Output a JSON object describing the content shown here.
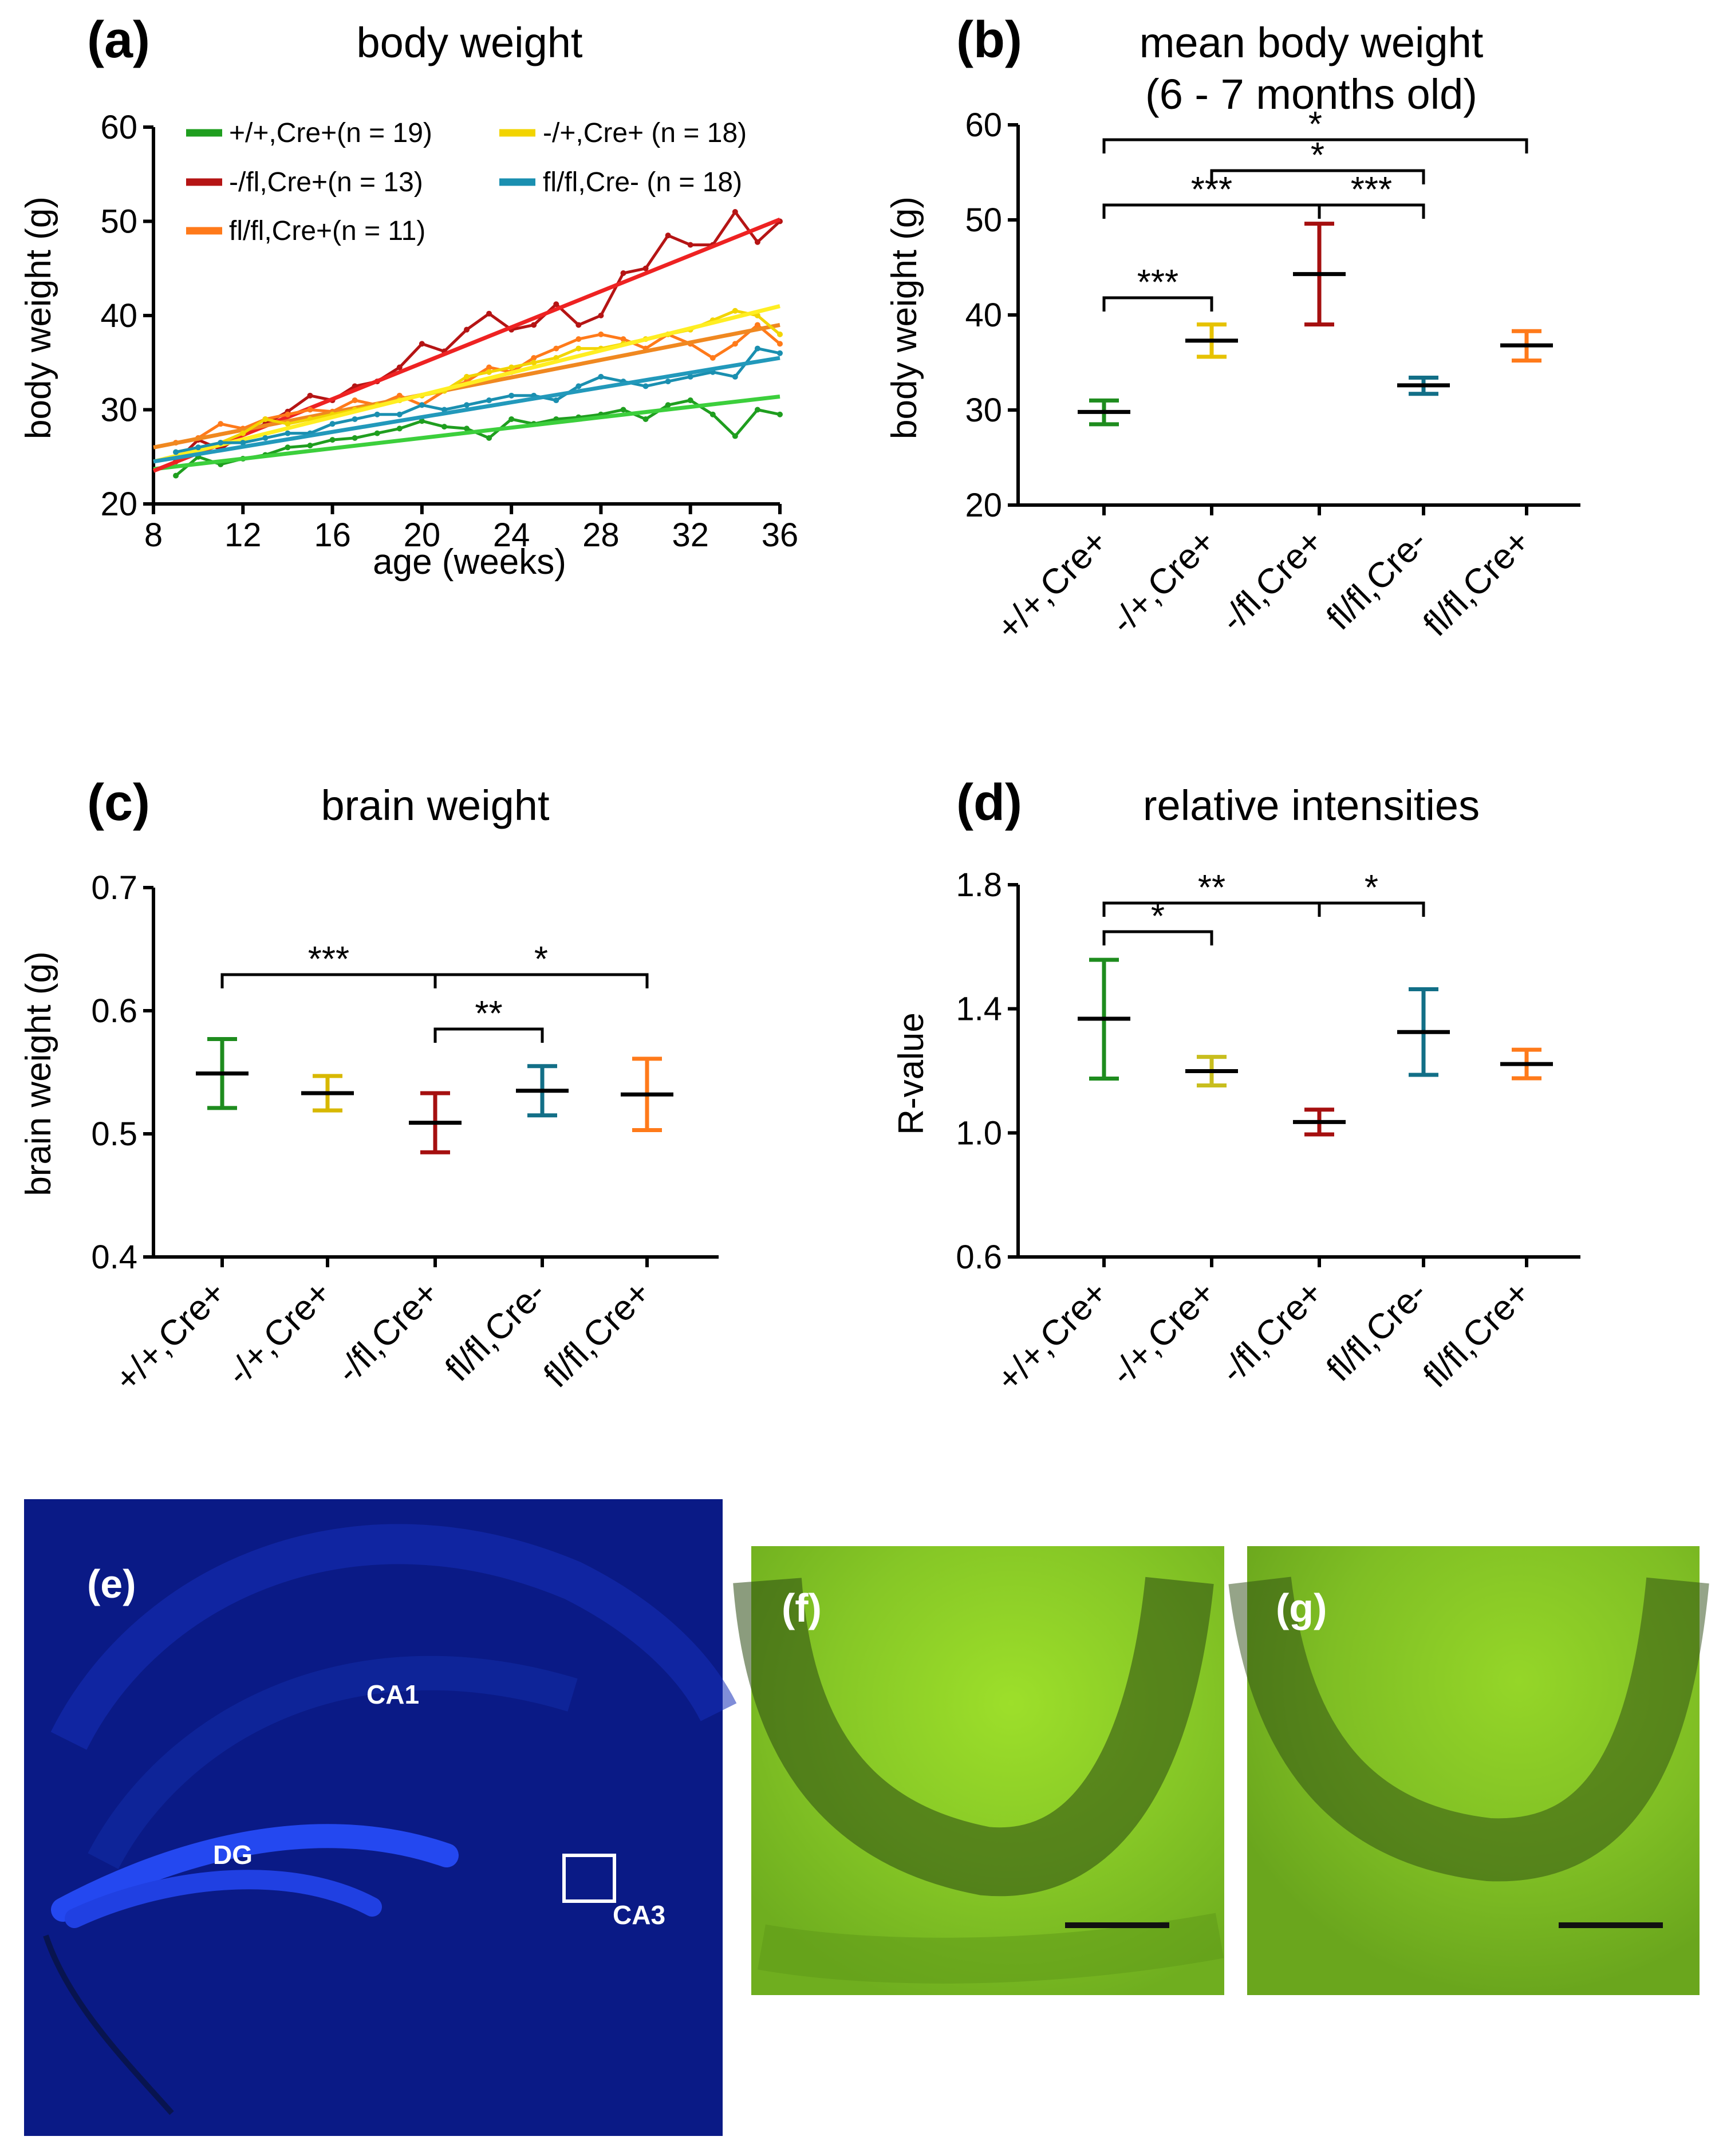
{
  "chart_data": [
    {
      "panel": "(a)",
      "type": "line",
      "title": "body weight",
      "xlabel": "age (weeks)",
      "ylabel": "body weight (g)",
      "xlim": [
        8,
        36
      ],
      "ylim": [
        20,
        60
      ],
      "xticks": [
        8,
        12,
        16,
        20,
        24,
        28,
        32,
        36
      ],
      "yticks": [
        20,
        30,
        40,
        50,
        60
      ],
      "legend": "top-left",
      "series": [
        {
          "name": "+/+,Cre+(n = 19)",
          "color": "#1f9e1f",
          "fit_color": "#3ccf3c",
          "x": [
            9,
            10,
            11,
            12,
            13,
            14,
            15,
            16,
            17,
            18,
            19,
            20,
            21,
            22,
            23,
            24,
            25,
            26,
            27,
            28,
            29,
            30,
            31,
            32,
            33,
            34,
            35,
            36
          ],
          "y": [
            23.0,
            25.0,
            24.2,
            24.8,
            25.2,
            26.0,
            26.2,
            26.8,
            27.0,
            27.5,
            28.0,
            28.8,
            28.2,
            28.0,
            27.0,
            29.0,
            28.5,
            29.0,
            29.2,
            29.5,
            30.0,
            29.0,
            30.5,
            31.0,
            29.5,
            27.2,
            30.0,
            29.5
          ],
          "fit": [
            [
              8,
              23.7
            ],
            [
              36,
              31.4
            ]
          ]
        },
        {
          "name": "-/fl,Cre+(n = 13)",
          "color": "#b51414",
          "fit_color": "#ee2222",
          "x": [
            9,
            10,
            11,
            12,
            13,
            14,
            15,
            16,
            17,
            18,
            19,
            20,
            21,
            22,
            23,
            24,
            25,
            26,
            27,
            28,
            29,
            30,
            31,
            32,
            33,
            34,
            35,
            36
          ],
          "y": [
            24.5,
            26.8,
            25.8,
            27.5,
            28.5,
            29.8,
            31.5,
            31.0,
            32.5,
            33.0,
            34.5,
            37.0,
            36.2,
            38.5,
            40.2,
            38.5,
            39.0,
            41.2,
            39.0,
            40.0,
            44.5,
            45.0,
            48.5,
            47.5,
            47.5,
            51.0,
            47.8,
            50.0
          ],
          "fit": [
            [
              8,
              23.5
            ],
            [
              36,
              50.2
            ]
          ]
        },
        {
          "name": "fl/fl,Cre+(n = 11)",
          "color": "#ff7a1a",
          "fit_color": "#f08820",
          "x": [
            9,
            10,
            11,
            12,
            13,
            14,
            15,
            16,
            17,
            18,
            19,
            20,
            21,
            22,
            23,
            24,
            25,
            26,
            27,
            28,
            29,
            30,
            31,
            32,
            33,
            34,
            35,
            36
          ],
          "y": [
            26.5,
            27.0,
            28.5,
            28.0,
            29.0,
            29.5,
            30.0,
            29.8,
            31.0,
            30.5,
            31.5,
            30.5,
            32.0,
            33.0,
            34.5,
            34.0,
            35.5,
            36.5,
            37.5,
            38.0,
            37.5,
            36.5,
            38.0,
            37.0,
            35.5,
            37.0,
            39.0,
            37.0
          ],
          "fit": [
            [
              8,
              26.0
            ],
            [
              36,
              39.0
            ]
          ]
        },
        {
          "name": "-/+,Cre+ (n = 18)",
          "color": "#f2d400",
          "fit_color": "#ffee22",
          "x": [
            9,
            10,
            11,
            12,
            13,
            14,
            15,
            16,
            17,
            18,
            19,
            20,
            21,
            22,
            23,
            24,
            25,
            26,
            27,
            28,
            29,
            30,
            31,
            32,
            33,
            34,
            35,
            36
          ],
          "y": [
            25.5,
            26.0,
            26.5,
            27.5,
            29.0,
            28.5,
            29.0,
            29.5,
            30.0,
            30.5,
            31.0,
            31.5,
            32.0,
            33.5,
            34.0,
            34.5,
            35.0,
            35.5,
            36.5,
            36.5,
            37.0,
            37.5,
            38.0,
            38.5,
            39.5,
            40.5,
            40.0,
            38.0
          ],
          "fit": [
            [
              8,
              24.5
            ],
            [
              36,
              41.0
            ]
          ]
        },
        {
          "name": "fl/fl,Cre- (n = 18)",
          "color": "#1a8fb0",
          "fit_color": "#2299bb",
          "x": [
            9,
            10,
            11,
            12,
            13,
            14,
            15,
            16,
            17,
            18,
            19,
            20,
            21,
            22,
            23,
            24,
            25,
            26,
            27,
            28,
            29,
            30,
            31,
            32,
            33,
            34,
            35,
            36
          ],
          "y": [
            25.5,
            26.0,
            26.5,
            26.5,
            27.0,
            27.5,
            27.5,
            28.5,
            29.0,
            29.5,
            29.5,
            30.5,
            30.0,
            30.5,
            31.0,
            31.5,
            31.5,
            31.0,
            32.5,
            33.5,
            33.0,
            32.5,
            33.0,
            33.5,
            34.0,
            33.5,
            36.5,
            36.0
          ],
          "fit": [
            [
              8,
              24.5
            ],
            [
              36,
              35.5
            ]
          ]
        }
      ]
    },
    {
      "panel": "(b)",
      "type": "errorbar",
      "title": "mean body weight",
      "subtitle": "(6 - 7 months old)",
      "ylabel": "body weight (g)",
      "ylim": [
        20,
        60
      ],
      "yticks": [
        20,
        30,
        40,
        50,
        60
      ],
      "categories": [
        "+/+,Cre+",
        "-/+,Cre+",
        "-/fl,Cre+",
        "fl/fl,Cre-",
        "fl/fl,Cre+"
      ],
      "colors": [
        "#1e8c1e",
        "#e6c200",
        "#a50f0f",
        "#126f87",
        "#ff7a1a"
      ],
      "mean": [
        29.8,
        37.3,
        44.3,
        32.6,
        36.8
      ],
      "low": [
        28.5,
        35.6,
        39.0,
        31.7,
        35.2
      ],
      "high": [
        31.0,
        39.0,
        49.6,
        33.4,
        38.3
      ],
      "significance": [
        {
          "from": 0,
          "to": 4,
          "label": "*"
        },
        {
          "from": 1,
          "to": 3,
          "label": "*"
        },
        {
          "from": 0,
          "to": 3,
          "label": "***",
          "split_at": 2,
          "label2": "***"
        },
        {
          "from": 0,
          "to": 1,
          "label": "***"
        }
      ]
    },
    {
      "panel": "(c)",
      "type": "errorbar",
      "title": "brain weight",
      "ylabel": "brain weight (g)",
      "ylim": [
        0.4,
        0.7
      ],
      "yticks": [
        "0.4",
        "0.5",
        "0.6",
        "0.7"
      ],
      "categories": [
        "+/+,Cre+",
        "-/+,Cre+",
        "-/fl,Cre+",
        "fl/fl,Cre-",
        "fl/fl,Cre+"
      ],
      "colors": [
        "#1e8c1e",
        "#d8b800",
        "#a50f0f",
        "#126f87",
        "#ff7a1a"
      ],
      "mean": [
        0.549,
        0.533,
        0.509,
        0.535,
        0.532
      ],
      "low": [
        0.521,
        0.519,
        0.485,
        0.515,
        0.503
      ],
      "high": [
        0.577,
        0.547,
        0.533,
        0.555,
        0.561
      ],
      "significance": [
        {
          "from": 0,
          "to": 4,
          "label": "***",
          "split_at": 2,
          "label2": "*"
        },
        {
          "from": 2,
          "to": 3,
          "label": "**"
        }
      ]
    },
    {
      "panel": "(d)",
      "type": "errorbar",
      "title": "relative intensities",
      "ylabel": "R-value",
      "ylim": [
        0.6,
        1.8
      ],
      "yticks": [
        "0.6",
        "1.0",
        "1.4",
        "1.8"
      ],
      "categories": [
        "+/+,Cre+",
        "-/+,Cre+",
        "-/fl,Cre+",
        "fl/fl,Cre-",
        "fl/fl,Cre+"
      ],
      "colors": [
        "#1e8c1e",
        "#c8be1e",
        "#a50f0f",
        "#126f87",
        "#ff7a1a"
      ],
      "mean": [
        1.368,
        1.199,
        1.035,
        1.325,
        1.222
      ],
      "low": [
        1.175,
        1.153,
        0.995,
        1.187,
        1.176
      ],
      "high": [
        1.558,
        1.245,
        1.075,
        1.463,
        1.268
      ],
      "significance": [
        {
          "from": 0,
          "to": 3,
          "label": "**",
          "split_at": 2,
          "label2": "*"
        },
        {
          "from": 0,
          "to": 1,
          "label": "*"
        }
      ]
    }
  ],
  "micrographs": {
    "e": {
      "label": "(e)",
      "regions": [
        "CA1",
        "DG",
        "CA3"
      ]
    },
    "f": {
      "label": "(f)"
    },
    "g": {
      "label": "(g)"
    }
  }
}
